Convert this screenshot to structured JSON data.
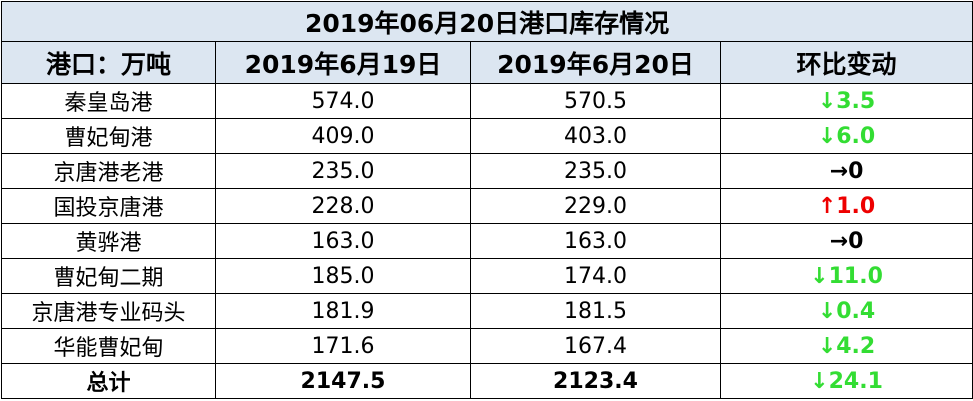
{
  "table": {
    "title": "2019年06月20日港口库存情况",
    "header": [
      "港口：万吨",
      "2019年6月19日",
      "2019年6月20日",
      "环比变动"
    ],
    "rows": [
      [
        "秦皇岛港",
        "574.0",
        "570.5",
        {
          "text": "↓3.5",
          "color": "#33dd33"
        }
      ],
      [
        "曹妃甸港",
        "409.0",
        "403.0",
        {
          "text": "↓6.0",
          "color": "#33dd33"
        }
      ],
      [
        "京唐港老港",
        "235.0",
        "235.0",
        {
          "text": "→0",
          "color": "#000000"
        }
      ],
      [
        "国投京唐港",
        "228.0",
        "229.0",
        {
          "text": "↑1.0",
          "color": "#ee0000"
        }
      ],
      [
        "黄骅港",
        "163.0",
        "163.0",
        {
          "text": "→0",
          "color": "#000000"
        }
      ],
      [
        "曹妃甸二期",
        "185.0",
        "174.0",
        {
          "text": "↓11.0",
          "color": "#33dd33"
        }
      ],
      [
        "京唐港专业码头",
        "181.9",
        "181.5",
        {
          "text": "↓0.4",
          "color": "#33dd33"
        }
      ],
      [
        "华能曹妃甸",
        "171.6",
        "167.4",
        {
          "text": "↓4.2",
          "color": "#33dd33"
        }
      ],
      [
        "总计",
        "2147.5",
        "2123.4",
        {
          "text": "↓24.1",
          "color": "#33dd33"
        }
      ]
    ],
    "total_row": 8
  }
}
